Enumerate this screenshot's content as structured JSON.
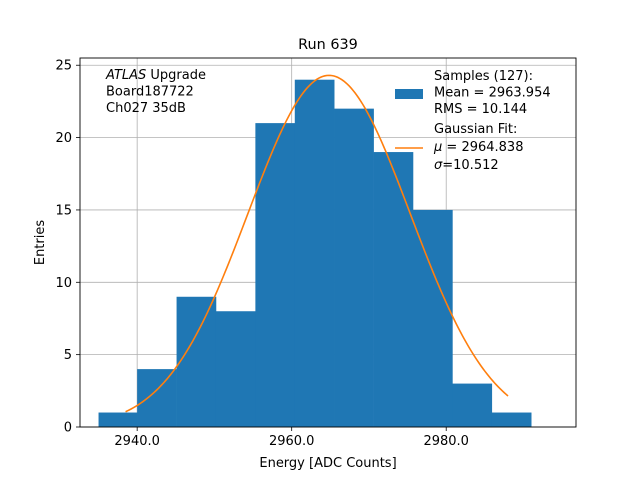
{
  "chart_data": {
    "type": "histogram",
    "title": "Run 639",
    "xlabel": "Energy [ADC Counts]",
    "ylabel": "Entries",
    "xlim": [
      2932.6,
      2996.8
    ],
    "ylim": [
      0,
      25.5
    ],
    "x_ticks": [
      2940,
      2960,
      2980
    ],
    "x_tick_labels": [
      "2940.0",
      "2960.0",
      "2980.0"
    ],
    "y_ticks": [
      0,
      5,
      10,
      15,
      20,
      25
    ],
    "y_tick_labels": [
      "0",
      "5",
      "10",
      "15",
      "20",
      "25"
    ],
    "grid": true,
    "bins": [
      {
        "x0": 2935.0,
        "x1": 2940.0,
        "value": 1
      },
      {
        "x0": 2940.0,
        "x1": 2945.1,
        "value": 4
      },
      {
        "x0": 2945.1,
        "x1": 2950.2,
        "value": 9
      },
      {
        "x0": 2950.2,
        "x1": 2955.3,
        "value": 8
      },
      {
        "x0": 2955.3,
        "x1": 2960.4,
        "value": 21
      },
      {
        "x0": 2960.4,
        "x1": 2965.5,
        "value": 24
      },
      {
        "x0": 2965.5,
        "x1": 2970.6,
        "value": 22
      },
      {
        "x0": 2970.6,
        "x1": 2975.7,
        "value": 19
      },
      {
        "x0": 2975.7,
        "x1": 2980.8,
        "value": 15
      },
      {
        "x0": 2980.8,
        "x1": 2985.9,
        "value": 3
      },
      {
        "x0": 2985.9,
        "x1": 2991.0,
        "value": 1
      }
    ],
    "fit": {
      "mu": 2964.838,
      "sigma": 10.512,
      "amplitude": 24.3,
      "x_range": [
        2938.5,
        2988.0
      ]
    },
    "annotation_lines": [
      {
        "italic": "ATLAS",
        "rest": " Upgrade"
      },
      {
        "italic": "",
        "rest": " Board187722"
      },
      {
        "italic": "",
        "rest": " Ch027 35dB"
      }
    ],
    "legend": {
      "placement": "upper right",
      "hist_lines": [
        "Samples (127):",
        " Mean = 2963.954",
        " RMS = 10.144"
      ],
      "fit_lines": [
        "Gaussian Fit:",
        " μ = 2964.838",
        " σ=10.512"
      ]
    },
    "colors": {
      "hist": "#1f77b4",
      "fit": "#ff7f0e",
      "grid": "#b0b0b0"
    }
  }
}
